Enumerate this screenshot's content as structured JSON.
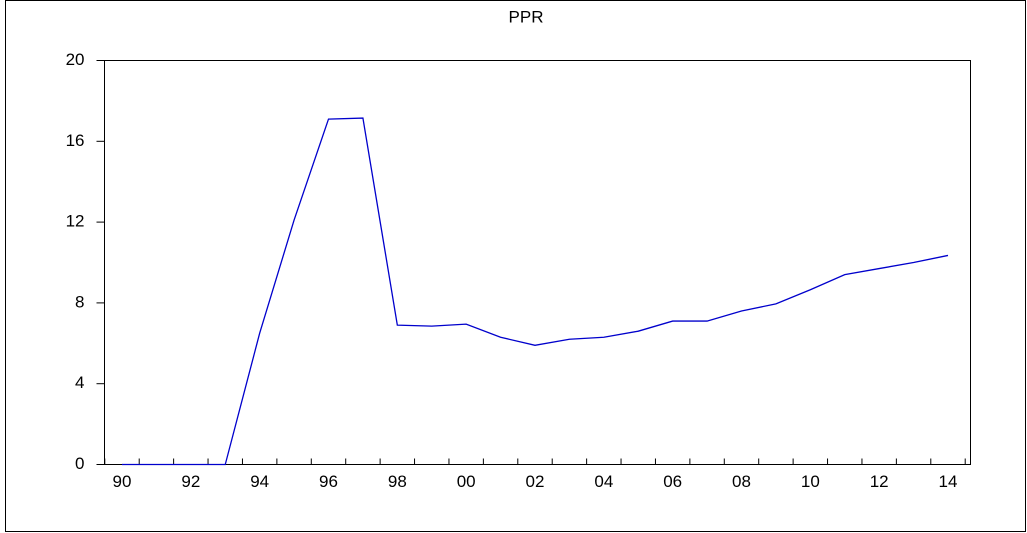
{
  "chart_data": {
    "type": "line",
    "title": "PPR",
    "categories": [
      "90",
      null,
      "92",
      null,
      "94",
      null,
      "96",
      null,
      "98",
      null,
      "00",
      null,
      "02",
      null,
      "04",
      null,
      "06",
      null,
      "08",
      null,
      "10",
      null,
      "12",
      null,
      "14"
    ],
    "values": [
      0,
      0,
      0,
      0,
      6.5,
      12.1,
      17.1,
      17.15,
      6.9,
      6.85,
      6.95,
      6.3,
      5.9,
      6.2,
      6.3,
      6.6,
      7.1,
      7.1,
      7.6,
      7.95,
      8.65,
      9.4,
      9.7,
      10.0,
      10.35
    ],
    "color": "#0000cc",
    "ylim": [
      0,
      20
    ],
    "yticks": [
      0,
      4,
      8,
      12,
      16,
      20
    ]
  }
}
